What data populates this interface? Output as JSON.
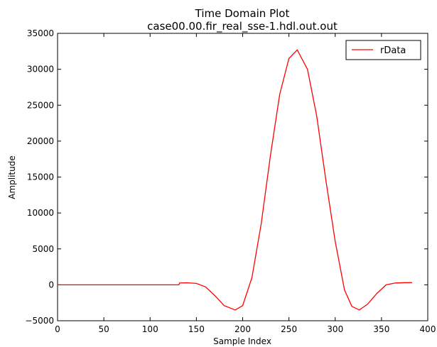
{
  "chart_data": {
    "type": "line",
    "title": "Time Domain Plot",
    "subtitle": "case00.00.fir_real_sse-1.hdl.out.out",
    "xlabel": "Sample Index",
    "ylabel": "Amplitude",
    "xlim": [
      0,
      400
    ],
    "ylim": [
      -5000,
      35000
    ],
    "xticks": [
      0,
      50,
      100,
      150,
      200,
      250,
      300,
      350,
      400
    ],
    "yticks": [
      -5000,
      0,
      5000,
      10000,
      15000,
      20000,
      25000,
      30000,
      35000
    ],
    "xtick_labels": [
      "0",
      "50",
      "100",
      "150",
      "200",
      "250",
      "300",
      "350",
      "400"
    ],
    "ytick_labels": [
      "−5000",
      "0",
      "5000",
      "10000",
      "15000",
      "20000",
      "25000",
      "30000",
      "35000"
    ],
    "grid": false,
    "legend_position": "top-right",
    "series": [
      {
        "name": "rData",
        "color": "#ff0000",
        "points": [
          [
            0,
            0
          ],
          [
            50,
            0
          ],
          [
            100,
            0
          ],
          [
            131,
            0
          ],
          [
            132,
            250
          ],
          [
            140,
            280
          ],
          [
            150,
            200
          ],
          [
            160,
            -300
          ],
          [
            170,
            -1500
          ],
          [
            180,
            -2900
          ],
          [
            192,
            -3500
          ],
          [
            200,
            -2900
          ],
          [
            210,
            1000
          ],
          [
            220,
            8500
          ],
          [
            230,
            18000
          ],
          [
            240,
            26500
          ],
          [
            250,
            31500
          ],
          [
            259,
            32700
          ],
          [
            270,
            30000
          ],
          [
            280,
            23500
          ],
          [
            290,
            14500
          ],
          [
            300,
            6000
          ],
          [
            310,
            -700
          ],
          [
            318,
            -3000
          ],
          [
            326,
            -3500
          ],
          [
            335,
            -2700
          ],
          [
            345,
            -1200
          ],
          [
            355,
            0
          ],
          [
            365,
            250
          ],
          [
            375,
            300
          ],
          [
            383,
            300
          ]
        ]
      }
    ]
  }
}
